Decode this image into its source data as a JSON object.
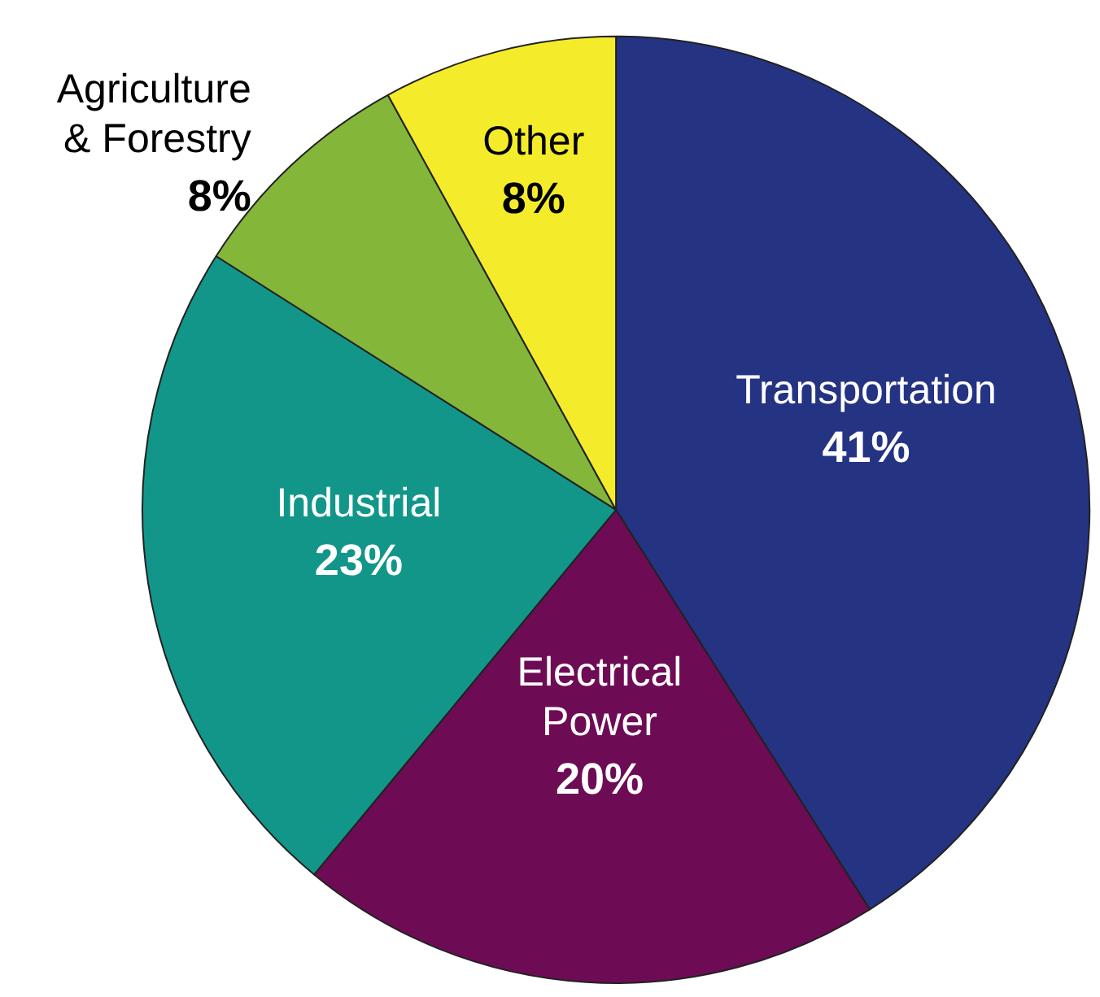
{
  "chart_data": {
    "type": "pie",
    "categories": [
      "Transportation",
      "Electrical Power",
      "Industrial",
      "Agriculture & Forestry",
      "Other"
    ],
    "values": [
      41,
      20,
      23,
      8,
      8
    ],
    "colors": [
      "#253383",
      "#6e0b55",
      "#13968a",
      "#84b63a",
      "#f4ec2a"
    ],
    "value_labels": [
      "41%",
      "20%",
      "23%",
      "8%",
      "8%"
    ],
    "legend": false
  }
}
